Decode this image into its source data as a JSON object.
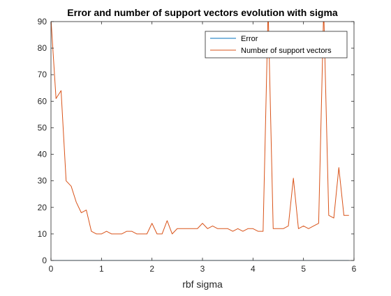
{
  "chart_data": {
    "type": "line",
    "title": "Error and number of support vectors evolution with sigma",
    "xlabel": "rbf sigma",
    "ylabel": "",
    "xlim": [
      0,
      6
    ],
    "ylim": [
      0,
      90
    ],
    "xticks": [
      0,
      1,
      2,
      3,
      4,
      5,
      6
    ],
    "yticks": [
      0,
      10,
      20,
      30,
      40,
      50,
      60,
      70,
      80,
      90
    ],
    "grid": false,
    "legend_position": "top-right",
    "x": [
      0,
      0.1,
      0.2,
      0.3,
      0.4,
      0.5,
      0.6,
      0.7,
      0.8,
      0.9,
      1.0,
      1.1,
      1.2,
      1.3,
      1.4,
      1.5,
      1.6,
      1.7,
      1.8,
      1.9,
      2.0,
      2.1,
      2.2,
      2.3,
      2.4,
      2.5,
      2.6,
      2.7,
      2.8,
      2.9,
      3.0,
      3.1,
      3.2,
      3.3,
      3.4,
      3.5,
      3.6,
      3.7,
      3.8,
      3.9,
      4.0,
      4.1,
      4.2,
      4.3,
      4.4,
      4.5,
      4.6,
      4.7,
      4.8,
      4.9,
      5.0,
      5.1,
      5.2,
      5.3,
      5.4,
      5.5,
      5.6,
      5.7,
      5.8,
      5.9
    ],
    "series": [
      {
        "name": "Error",
        "color": "#0072BD",
        "values": [
          0,
          0,
          0,
          0,
          0,
          0,
          0,
          0,
          0,
          0,
          0,
          0,
          0,
          0,
          0,
          0,
          0,
          0,
          0,
          0,
          0,
          0,
          0,
          0,
          0,
          0,
          0,
          0,
          0,
          0,
          0,
          0,
          0,
          0,
          0,
          0,
          0,
          0,
          0,
          0,
          0,
          0,
          0,
          0,
          0,
          0,
          0,
          0,
          0,
          0,
          0,
          0,
          0,
          0,
          0,
          0,
          0,
          0,
          0,
          0
        ]
      },
      {
        "name": "Number of support vectors",
        "color": "#D95319",
        "values": [
          91,
          61,
          64,
          30,
          28,
          22,
          18,
          19,
          11,
          10,
          10,
          11,
          10,
          10,
          10,
          11,
          11,
          10,
          10,
          10,
          14,
          10,
          10,
          15,
          10,
          12,
          12,
          12,
          12,
          12,
          14,
          12,
          13,
          12,
          12,
          12,
          11,
          12,
          11,
          12,
          12,
          11,
          11,
          95,
          12,
          12,
          12,
          13,
          31,
          12,
          13,
          12,
          13,
          14,
          95,
          17,
          16,
          35,
          17,
          17
        ]
      }
    ]
  }
}
